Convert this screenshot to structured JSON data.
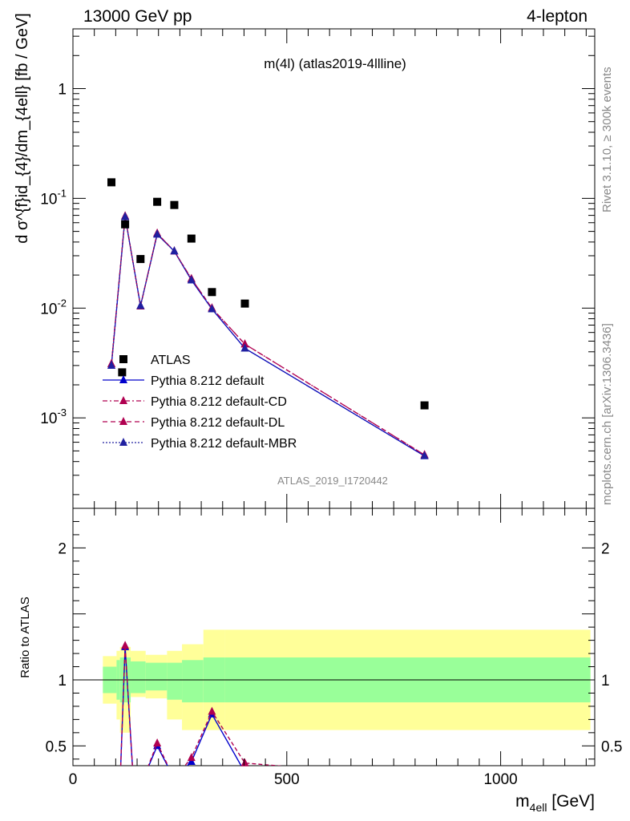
{
  "header": {
    "left": "13000 GeV pp",
    "right": "4-lepton"
  },
  "side": {
    "rivet": "Rivet 3.1.10, ≥ 300k events",
    "mcplots": "mcplots.cern.ch [arXiv:1306.3436]"
  },
  "main": {
    "title": "m(4l) (atlas2019-4llline)",
    "ylabel": "d σ^{f}id_{4}/dm_{4ell} [fb / GeV]",
    "analysis_id": "ATLAS_2019_I1720442"
  },
  "ratio": {
    "ylabel": "Ratio to ATLAS"
  },
  "xaxis": {
    "label_main": "m",
    "label_sub": "4ell",
    "label_unit": " [GeV]"
  },
  "legend": [
    {
      "label": "ATLAS",
      "style": "data"
    },
    {
      "label": "Pythia 8.212 default",
      "style": "solid",
      "color": "#0000cc"
    },
    {
      "label": "Pythia 8.212 default-CD",
      "style": "dashdot",
      "color": "#b00050"
    },
    {
      "label": "Pythia 8.212 default-DL",
      "style": "dashed",
      "color": "#b00050"
    },
    {
      "label": "Pythia 8.212 default-MBR",
      "style": "dotted",
      "color": "#2020a0"
    }
  ],
  "chart_data": {
    "type": "line",
    "xlim": [
      0,
      1220
    ],
    "ylim": [
      0.00015,
      3.5
    ],
    "ylog": true,
    "ratio_ylim": [
      0.35,
      2.3
    ],
    "x_ticks": [
      0,
      500,
      1000
    ],
    "y_ticks": [
      {
        "v": 0.001,
        "label": "10^-3"
      },
      {
        "v": 0.01,
        "label": "10^-2"
      },
      {
        "v": 0.1,
        "label": "10^-1"
      },
      {
        "v": 1,
        "label": "1"
      }
    ],
    "ratio_ticks": [
      0.5,
      1,
      2
    ],
    "bins": [
      [
        70,
        102
      ],
      [
        102,
        110
      ],
      [
        110,
        135
      ],
      [
        135,
        170
      ],
      [
        170,
        220
      ],
      [
        220,
        255
      ],
      [
        255,
        305
      ],
      [
        305,
        355
      ],
      [
        355,
        1210
      ]
    ],
    "data": {
      "x": [
        90,
        115,
        122,
        158,
        197,
        237,
        277,
        325,
        402,
        822
      ],
      "y": [
        0.14,
        0.0026,
        0.058,
        0.028,
        0.093,
        0.087,
        0.043,
        0.014,
        0.011,
        0.0013
      ]
    },
    "series": [
      {
        "name": "Pythia 8.212 default",
        "color": "#0000cc",
        "x": [
          90,
          122,
          158,
          197,
          237,
          277,
          325,
          402,
          822
        ],
        "y": [
          0.003,
          0.068,
          0.0105,
          0.047,
          0.033,
          0.018,
          0.0098,
          0.0043,
          0.00045
        ]
      },
      {
        "name": "Pythia 8.212 default-CD",
        "color": "#b00050",
        "x": [
          90,
          122,
          158,
          197,
          237,
          277,
          325,
          402,
          822
        ],
        "y": [
          0.0031,
          0.069,
          0.0104,
          0.048,
          0.033,
          0.0185,
          0.01,
          0.0047,
          0.00046
        ]
      },
      {
        "name": "Pythia 8.212 default-DL",
        "color": "#b00050",
        "x": [
          90,
          122,
          158,
          197,
          237,
          277,
          325,
          402,
          822
        ],
        "y": [
          0.0031,
          0.069,
          0.0104,
          0.048,
          0.033,
          0.0185,
          0.01,
          0.0047,
          0.00046
        ]
      },
      {
        "name": "Pythia 8.212 default-MBR",
        "color": "#2020a0",
        "x": [
          90,
          122,
          158,
          197,
          237,
          277,
          325,
          402,
          822
        ],
        "y": [
          0.003,
          0.068,
          0.0105,
          0.047,
          0.033,
          0.018,
          0.0098,
          0.0043,
          0.00045
        ]
      }
    ],
    "ratio_series": [
      {
        "x": [
          110,
          122,
          140,
          158,
          197,
          237,
          277,
          325,
          402
        ],
        "y": [
          0.2,
          1.25,
          0.3,
          0.2,
          0.5,
          0.25,
          0.38,
          0.74,
          0.3
        ],
        "color": "#0000cc"
      },
      {
        "x": [
          110,
          122,
          140,
          158,
          197,
          237,
          277,
          325,
          402,
          550
        ],
        "y": [
          0.2,
          1.26,
          0.3,
          0.2,
          0.52,
          0.25,
          0.41,
          0.76,
          0.37,
          0.33
        ],
        "color": "#b00050"
      }
    ],
    "ratio_bands": {
      "yellow": [
        [
          0.82,
          1.18
        ],
        [
          0.7,
          1.22
        ],
        [
          0.6,
          1.25
        ],
        [
          0.87,
          1.22
        ],
        [
          0.86,
          1.19
        ],
        [
          0.7,
          1.22
        ],
        [
          0.62,
          1.27
        ],
        [
          0.62,
          1.38
        ],
        [
          0.62,
          1.38
        ]
      ],
      "green": [
        [
          0.9,
          1.1
        ],
        [
          0.85,
          1.15
        ],
        [
          0.83,
          1.17
        ],
        [
          0.9,
          1.14
        ],
        [
          0.92,
          1.13
        ],
        [
          0.85,
          1.13
        ],
        [
          0.83,
          1.15
        ],
        [
          0.83,
          1.17
        ],
        [
          0.83,
          1.17
        ]
      ]
    }
  }
}
